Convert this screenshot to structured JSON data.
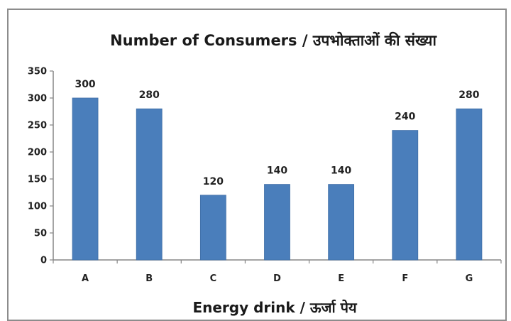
{
  "chart_data": {
    "type": "bar",
    "title": "Number of Consumers / उपभोक्ताओं की संख्या",
    "xlabel": "Energy drink / ऊर्जा पेय",
    "ylabel": "",
    "categories": [
      "A",
      "B",
      "C",
      "D",
      "E",
      "F",
      "G"
    ],
    "values": [
      300,
      280,
      120,
      140,
      140,
      240,
      280
    ],
    "data_labels": [
      "300",
      "280",
      "120",
      "140",
      "140",
      "240",
      "280"
    ],
    "ylim": [
      0,
      350
    ],
    "yticks": [
      0,
      50,
      100,
      150,
      200,
      250,
      300,
      350
    ],
    "grid": false,
    "legend": "none",
    "colors": {
      "bar": "#4a7ebb",
      "bar_edge": "#3f6ea6",
      "axis": "#868686"
    }
  }
}
